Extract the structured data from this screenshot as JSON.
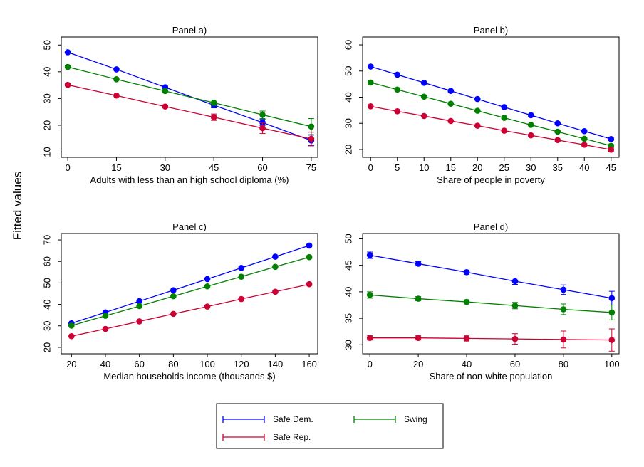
{
  "y_label": "Fitted values",
  "colors": {
    "safe_dem": "#0000ff",
    "swing": "#008000",
    "safe_rep": "#cc0033"
  },
  "legend": {
    "position": "bottom-center",
    "entries": [
      {
        "name": "Safe Dem.",
        "color": "#0000ff"
      },
      {
        "name": "Swing",
        "color": "#008000"
      },
      {
        "name": "Safe Rep.",
        "color": "#cc0033"
      }
    ]
  },
  "chart_data": [
    {
      "type": "line",
      "title": "Panel a)",
      "xlabel": "Adults with less than an high school diploma (%)",
      "ylabel": "Fitted values",
      "xticks": [
        0,
        15,
        30,
        45,
        60,
        75
      ],
      "yticks": [
        10,
        20,
        30,
        40,
        50
      ],
      "xlim": [
        -2,
        77
      ],
      "ylim": [
        8,
        53
      ],
      "x": [
        0,
        15,
        30,
        45,
        60,
        75
      ],
      "series": [
        {
          "name": "Safe Dem.",
          "color": "#0000ff",
          "values": [
            47.3,
            40.9,
            34.2,
            27.5,
            21.0,
            14.3
          ],
          "errors": [
            0.4,
            0.4,
            0.5,
            1.0,
            1.2,
            2.0
          ]
        },
        {
          "name": "Swing",
          "color": "#008000",
          "values": [
            41.8,
            37.2,
            32.8,
            28.4,
            23.9,
            19.5
          ],
          "errors": [
            0.4,
            0.4,
            0.5,
            1.0,
            1.4,
            3.0
          ]
        },
        {
          "name": "Safe Rep.",
          "color": "#cc0033",
          "values": [
            35.1,
            31.1,
            27.0,
            23.0,
            18.9,
            14.9
          ],
          "errors": [
            0.4,
            0.4,
            0.5,
            1.2,
            2.0,
            2.5
          ]
        }
      ]
    },
    {
      "type": "line",
      "title": "Panel b)",
      "xlabel": "Share of people in poverty",
      "ylabel": "Fitted values",
      "xticks": [
        0,
        5,
        10,
        15,
        20,
        25,
        30,
        35,
        40,
        45
      ],
      "yticks": [
        20,
        30,
        40,
        50,
        60
      ],
      "xlim": [
        -1.5,
        46.5
      ],
      "ylim": [
        17,
        63
      ],
      "x": [
        0,
        5,
        10,
        15,
        20,
        25,
        30,
        35,
        40,
        45
      ],
      "series": [
        {
          "name": "Safe Dem.",
          "color": "#0000ff",
          "values": [
            51.7,
            48.6,
            45.5,
            42.4,
            39.3,
            36.2,
            33.1,
            30.0,
            27.0,
            24.0
          ],
          "errors": [
            0.4,
            0.4,
            0.4,
            0.4,
            0.4,
            0.4,
            0.4,
            0.4,
            0.5,
            0.6
          ]
        },
        {
          "name": "Swing",
          "color": "#008000",
          "values": [
            45.6,
            42.9,
            40.2,
            37.5,
            34.8,
            32.1,
            29.4,
            26.8,
            24.1,
            21.4
          ],
          "errors": [
            0.4,
            0.4,
            0.4,
            0.4,
            0.4,
            0.4,
            0.4,
            0.4,
            0.5,
            0.6
          ]
        },
        {
          "name": "Safe Rep.",
          "color": "#cc0033",
          "values": [
            36.5,
            34.6,
            32.8,
            30.9,
            29.1,
            27.2,
            25.4,
            23.6,
            21.8,
            19.9
          ],
          "errors": [
            0.4,
            0.4,
            0.4,
            0.4,
            0.4,
            0.4,
            0.4,
            0.4,
            0.5,
            0.6
          ]
        }
      ]
    },
    {
      "type": "line",
      "title": "Panel c)",
      "xlabel": "Median households income (thousands $)",
      "ylabel": "Fitted values",
      "xticks": [
        20,
        40,
        60,
        80,
        100,
        120,
        140,
        160
      ],
      "yticks": [
        20,
        30,
        40,
        50,
        60,
        70
      ],
      "xlim": [
        14,
        165
      ],
      "ylim": [
        17,
        73
      ],
      "x": [
        20,
        40,
        60,
        80,
        100,
        120,
        140,
        160
      ],
      "series": [
        {
          "name": "Safe Dem.",
          "color": "#0000ff",
          "values": [
            31.2,
            36.3,
            41.5,
            46.6,
            51.8,
            57.0,
            62.2,
            67.4
          ],
          "errors": [
            0.4,
            0.4,
            0.4,
            0.4,
            0.4,
            0.4,
            0.5,
            0.6
          ]
        },
        {
          "name": "Swing",
          "color": "#008000",
          "values": [
            30.1,
            34.7,
            39.2,
            43.8,
            48.4,
            52.9,
            57.5,
            62.0
          ],
          "errors": [
            0.4,
            0.4,
            0.4,
            0.4,
            0.4,
            0.4,
            0.5,
            0.6
          ]
        },
        {
          "name": "Safe Rep.",
          "color": "#cc0033",
          "values": [
            25.2,
            28.6,
            32.1,
            35.6,
            39.0,
            42.5,
            45.9,
            49.4
          ],
          "errors": [
            0.4,
            0.4,
            0.4,
            0.4,
            0.4,
            0.4,
            0.5,
            0.6
          ]
        }
      ]
    },
    {
      "type": "line",
      "title": "Panel d)",
      "xlabel": "Share of non-white population",
      "ylabel": "Fitted values",
      "xticks": [
        0,
        20,
        40,
        60,
        80,
        100
      ],
      "yticks": [
        30,
        35,
        40,
        45,
        50
      ],
      "xlim": [
        -3,
        103
      ],
      "ylim": [
        28.3,
        51
      ],
      "x": [
        0,
        20,
        40,
        60,
        80,
        100
      ],
      "series": [
        {
          "name": "Safe Dem.",
          "color": "#0000ff",
          "values": [
            46.9,
            45.3,
            43.7,
            42.0,
            40.4,
            38.8
          ],
          "errors": [
            0.6,
            0.4,
            0.4,
            0.6,
            0.9,
            1.3
          ]
        },
        {
          "name": "Swing",
          "color": "#008000",
          "values": [
            39.4,
            38.7,
            38.1,
            37.4,
            36.7,
            36.1
          ],
          "errors": [
            0.6,
            0.4,
            0.4,
            0.6,
            1.0,
            1.4
          ]
        },
        {
          "name": "Safe Rep.",
          "color": "#cc0033",
          "values": [
            31.3,
            31.3,
            31.2,
            31.1,
            31.0,
            30.9
          ],
          "errors": [
            0.4,
            0.4,
            0.5,
            1.0,
            1.6,
            2.1
          ]
        }
      ]
    }
  ]
}
